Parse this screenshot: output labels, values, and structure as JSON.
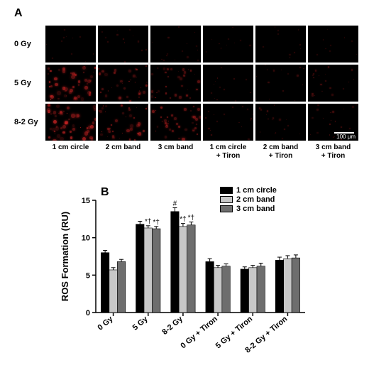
{
  "panelA": {
    "label": "A",
    "row_labels": [
      "0 Gy",
      "5 Gy",
      "8-2 Gy"
    ],
    "col_labels": [
      "1 cm circle",
      "2 cm band",
      "3 cm band",
      "1 cm circle\n+ Tiron",
      "2 cm band\n+ Tiron",
      "3 cm band\n+ Tiron"
    ],
    "scalebar": "100 μm",
    "speck_color": "#d62626",
    "bg_color": "#000000",
    "intensity": [
      [
        0.05,
        0.1,
        0.12,
        0.04,
        0.04,
        0.04
      ],
      [
        0.7,
        0.45,
        0.4,
        0.12,
        0.12,
        0.18
      ],
      [
        0.75,
        0.55,
        0.5,
        0.15,
        0.15,
        0.22
      ]
    ]
  },
  "panelB": {
    "label": "B",
    "type": "bar",
    "categories": [
      "0 Gy",
      "5 Gy",
      "8-2 Gy",
      "0 Gy + Tiron",
      "5 Gy + Tiron",
      "8-2 Gy + Tiron"
    ],
    "series": [
      {
        "name": "1 cm circle",
        "color": "#000000",
        "values": [
          8.0,
          11.8,
          13.5,
          6.8,
          5.8,
          7.0
        ],
        "err": [
          0.3,
          0.4,
          0.5,
          0.4,
          0.3,
          0.4
        ]
      },
      {
        "name": "2 cm band",
        "color": "#c8c8c8",
        "values": [
          5.7,
          11.3,
          11.5,
          6.0,
          6.0,
          7.2
        ],
        "err": [
          0.3,
          0.3,
          0.4,
          0.3,
          0.3,
          0.4
        ]
      },
      {
        "name": "3 cm band",
        "color": "#6e6e6e",
        "values": [
          6.8,
          11.2,
          11.7,
          6.2,
          6.2,
          7.3
        ],
        "err": [
          0.3,
          0.3,
          0.4,
          0.3,
          0.4,
          0.4
        ]
      }
    ],
    "annotations": [
      {
        "category": 1,
        "series": 1,
        "text": "*†"
      },
      {
        "category": 1,
        "series": 2,
        "text": "*†"
      },
      {
        "category": 2,
        "series": 0,
        "text": "#"
      },
      {
        "category": 2,
        "series": 1,
        "text": "*†"
      },
      {
        "category": 2,
        "series": 2,
        "text": "*†"
      }
    ],
    "ylabel": "ROS Formation (RU)",
    "ylim": [
      0,
      15
    ],
    "ytick_step": 5,
    "label_fontsize": 13,
    "tick_fontsize": 11,
    "axis_color": "#000000",
    "grid": false
  }
}
